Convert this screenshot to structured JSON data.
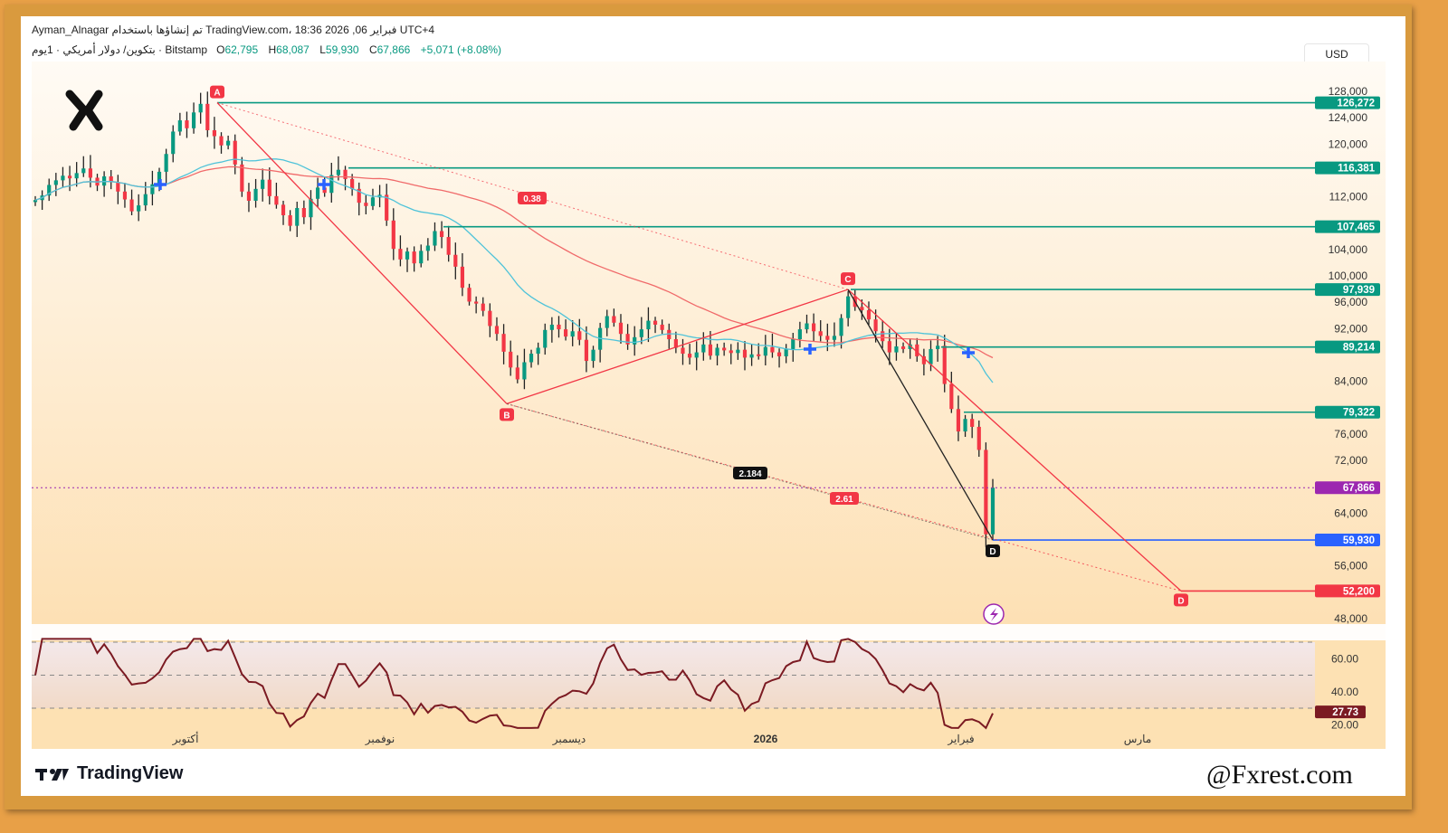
{
  "header": {
    "line1": "Ayman_Alnagar تم إنشاؤها باستخدام TradingView.com، 18:36 2026 ,06 فبراير UTC+4",
    "symbol": "بتكوين/ دولار أمريكي · 1يوم · Bitstamp",
    "open_label": "O",
    "open": "62,795",
    "high_label": "H",
    "high": "68,087",
    "low_label": "L",
    "low": "59,930",
    "close_label": "C",
    "close": "67,866",
    "change": "+5,071 (+8.08%)"
  },
  "currency_button": "USD",
  "footer": {
    "brand": "TradingView",
    "watermark": "@Fxrest.com"
  },
  "colors": {
    "up": "#089981",
    "down": "#f23645",
    "level_line": "#089981",
    "ma_fast": "#4fc3d9",
    "ma_slow": "#f06a6a",
    "pattern": "#f23645",
    "current_price": "#9c27b0",
    "low_line": "#2962ff",
    "rsi": "#7b1a22"
  },
  "chart_data": [
    {
      "type": "candlestick",
      "title": "BTC/USD · 1D · Bitstamp",
      "ylabel": "USD",
      "ylim": [
        46000,
        130000
      ],
      "y_ticks": [
        "128,000",
        "124,000",
        "120,000",
        "112,000",
        "104,000",
        "100,000",
        "96,000",
        "92,000",
        "84,000",
        "76,000",
        "72,000",
        "64,000",
        "56,000",
        "48,000"
      ],
      "x_tick_labels": [
        "أكتوبر",
        "نوفمبر",
        "ديسمبر",
        "2026",
        "فبراير",
        "مارس"
      ],
      "price_levels": [
        {
          "label": "126,272",
          "value": 126272,
          "color": "#089981"
        },
        {
          "label": "116,381",
          "value": 116381,
          "color": "#089981"
        },
        {
          "label": "107,465",
          "value": 107465,
          "color": "#089981"
        },
        {
          "label": "97,939",
          "value": 97939,
          "color": "#089981"
        },
        {
          "label": "89,214",
          "value": 89214,
          "color": "#089981"
        },
        {
          "label": "79,322",
          "value": 79322,
          "color": "#089981"
        },
        {
          "label": "67,866",
          "value": 67866,
          "color": "#9c27b0"
        },
        {
          "label": "59,930",
          "value": 59930,
          "color": "#2962ff"
        },
        {
          "label": "52,200",
          "value": 52200,
          "color": "#f23645"
        }
      ],
      "pattern_points": [
        {
          "label": "A",
          "value": 126272
        },
        {
          "label": "B",
          "value": 80600
        },
        {
          "label": "C",
          "value": 97939
        },
        {
          "label": "D",
          "value": 59930
        },
        {
          "label": "D",
          "value": 52200
        }
      ],
      "ratios": [
        "0.38",
        "2.184",
        "2.61"
      ],
      "close_series": [
        111500,
        112200,
        113800,
        114500,
        115200,
        114800,
        115600,
        116300,
        114900,
        113700,
        115100,
        114200,
        112800,
        111600,
        109800,
        110700,
        112400,
        113900,
        115800,
        118500,
        121900,
        123600,
        122400,
        124800,
        126100,
        122100,
        121200,
        119800,
        120500,
        116900,
        112800,
        111400,
        113200,
        114600,
        112100,
        110800,
        109200,
        107600,
        110300,
        108900,
        111700,
        113400,
        112600,
        115300,
        116100,
        114700,
        113200,
        111100,
        110600,
        111900,
        112300,
        108400,
        104100,
        102500,
        103700,
        101900,
        103800,
        104600,
        106800,
        105900,
        103200,
        101400,
        98200,
        96100,
        95800,
        94700,
        92400,
        91200,
        88500,
        86100,
        84300,
        86900,
        88200,
        89100,
        91800,
        92600,
        91900,
        90800,
        91600,
        90300,
        87100,
        88800,
        92100,
        93900,
        92900,
        91200,
        89600,
        90700,
        91900,
        93200,
        92600,
        91800,
        90400,
        89100,
        88200,
        87600,
        88400,
        89600,
        87900,
        89100,
        88700,
        88300,
        88800,
        87600,
        88100,
        87900,
        89200,
        88400,
        87800,
        88900,
        90400,
        91900,
        92800,
        91600,
        90900,
        90300,
        90900,
        93600,
        96900,
        95300,
        94800,
        93400,
        91600,
        90100,
        88400,
        89300,
        88900,
        89600,
        87800,
        86600,
        88900,
        89400,
        83600,
        79800,
        76400,
        78300,
        77100,
        73600,
        60800,
        67866
      ],
      "rsi": {
        "ylim": [
          15,
          75
        ],
        "levels": [
          70,
          50,
          30
        ],
        "y_ticks": [
          "60.00",
          "40.00",
          "20.00"
        ],
        "current": "27.73"
      }
    }
  ]
}
